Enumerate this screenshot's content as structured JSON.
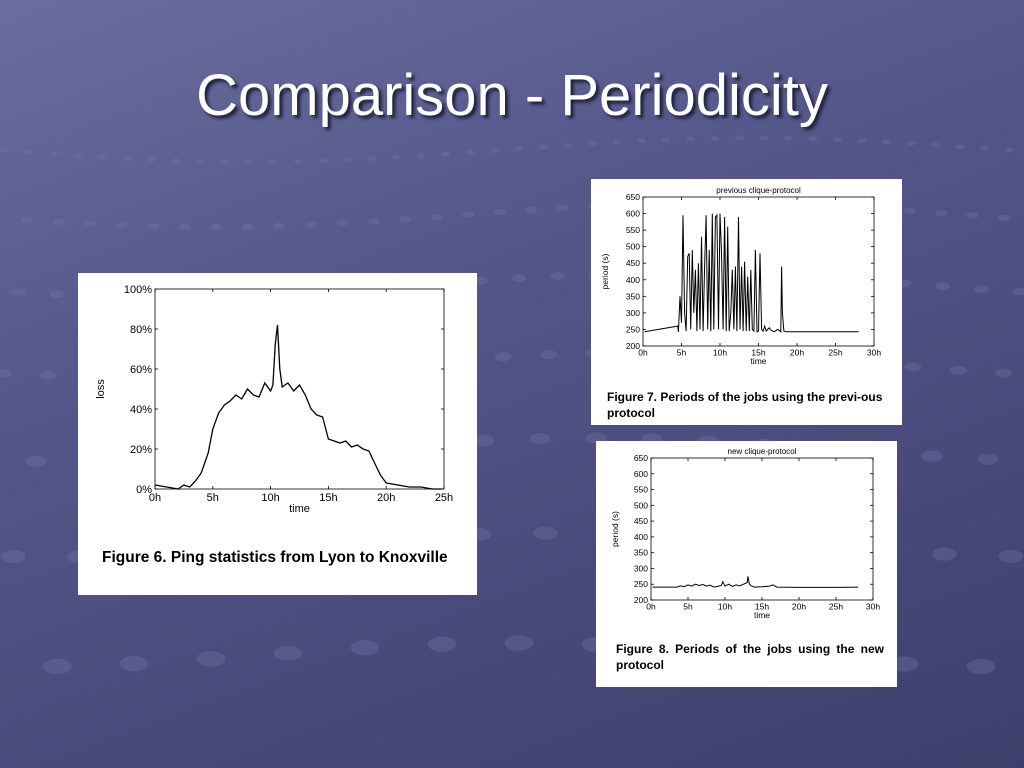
{
  "slide": {
    "title": "Comparison - Periodicity"
  },
  "figures": [
    {
      "caption": "Figure 6. Ping statistics from Lyon to Knoxville"
    },
    {
      "caption": "Figure 7. Periods of the jobs using the previ-ous protocol"
    },
    {
      "caption": "Figure 8. Periods of the jobs using the new protocol"
    }
  ],
  "chart_data": [
    {
      "type": "line",
      "title": "",
      "xlabel": "time",
      "ylabel": "loss",
      "xlim": [
        0,
        25
      ],
      "ylim": [
        0,
        100
      ],
      "x_ticks": [
        "0h",
        "5h",
        "10h",
        "15h",
        "20h",
        "25h"
      ],
      "y_ticks": [
        "0%",
        "20%",
        "40%",
        "60%",
        "80%",
        "100%"
      ],
      "series": [
        {
          "x": [
            0,
            1,
            2,
            2.5,
            3,
            3.5,
            4,
            4.3,
            4.6,
            5,
            5.5,
            6,
            6.5,
            7,
            7.5,
            8,
            8.5,
            9,
            9.5,
            10,
            10.2,
            10.4,
            10.6,
            10.8,
            11,
            11.5,
            12,
            12.5,
            13,
            13.5,
            14,
            14.5,
            15,
            15.5,
            16,
            16.5,
            17,
            17.5,
            18,
            18.5,
            19,
            19.5,
            20,
            21,
            22,
            23,
            24,
            24.8
          ],
          "values": [
            2,
            1,
            0,
            2,
            1,
            4,
            8,
            13,
            18,
            30,
            38,
            42,
            44,
            47,
            45,
            50,
            47,
            46,
            53,
            49,
            52,
            72,
            82,
            60,
            51,
            53,
            49,
            52,
            47,
            40,
            37,
            36,
            25,
            24,
            23,
            24,
            21,
            22,
            20,
            19,
            13,
            7,
            3,
            2,
            1,
            1,
            0,
            0
          ]
        }
      ]
    },
    {
      "type": "line",
      "title": "previous clique-protocol",
      "xlabel": "time",
      "ylabel": "period (s)",
      "xlim": [
        0,
        30
      ],
      "ylim": [
        200,
        650
      ],
      "x_ticks": [
        "0h",
        "5h",
        "10h",
        "15h",
        "20h",
        "25h",
        "30h"
      ],
      "y_ticks": [
        "200",
        "250",
        "300",
        "350",
        "400",
        "450",
        "500",
        "550",
        "600",
        "650"
      ],
      "series": [
        {
          "x": [
            0.2,
            4.5,
            4.6,
            4.8,
            5.0,
            5.2,
            5.4,
            5.6,
            5.8,
            6.0,
            6.2,
            6.4,
            6.6,
            6.8,
            7.0,
            7.2,
            7.4,
            7.6,
            7.8,
            8.0,
            8.2,
            8.4,
            8.6,
            8.8,
            9.0,
            9.2,
            9.4,
            9.6,
            9.8,
            10.0,
            10.2,
            10.4,
            10.6,
            10.8,
            11.0,
            11.2,
            11.4,
            11.6,
            11.8,
            12.0,
            12.2,
            12.4,
            12.6,
            12.8,
            13.0,
            13.2,
            13.4,
            13.6,
            13.8,
            14.0,
            14.2,
            14.4,
            14.6,
            14.8,
            15.0,
            15.2,
            15.4,
            15.6,
            15.8,
            16.0,
            16.2,
            16.4,
            16.6,
            16.8,
            17.0,
            17.5,
            17.9,
            18.0,
            18.1,
            18.3,
            18.6,
            20.0,
            25.0,
            28.0
          ],
          "values": [
            243,
            260,
            243,
            350,
            270,
            595,
            300,
            245,
            470,
            480,
            250,
            490,
            300,
            430,
            245,
            450,
            250,
            530,
            245,
            440,
            595,
            250,
            490,
            245,
            600,
            250,
            590,
            595,
            250,
            600,
            480,
            250,
            590,
            245,
            560,
            245,
            300,
            430,
            250,
            440,
            245,
            590,
            250,
            440,
            245,
            455,
            245,
            410,
            245,
            430,
            250,
            245,
            490,
            243,
            245,
            480,
            250,
            245,
            260,
            245,
            250,
            255,
            248,
            246,
            243,
            250,
            243,
            440,
            300,
            245,
            243,
            243,
            243,
            243
          ]
        }
      ]
    },
    {
      "type": "line",
      "title": "new clique-protocol",
      "xlabel": "time",
      "ylabel": "period (s)",
      "xlim": [
        0,
        30
      ],
      "ylim": [
        200,
        650
      ],
      "x_ticks": [
        "0h",
        "5h",
        "10h",
        "15h",
        "20h",
        "25h",
        "30h"
      ],
      "y_ticks": [
        "200",
        "250",
        "300",
        "350",
        "400",
        "450",
        "500",
        "550",
        "600",
        "650"
      ],
      "series": [
        {
          "x": [
            0.2,
            3.5,
            4.0,
            4.5,
            5.0,
            5.5,
            6.0,
            6.5,
            7.0,
            7.5,
            8.0,
            8.5,
            9.0,
            9.5,
            9.7,
            10.0,
            10.5,
            11.0,
            11.5,
            12.0,
            12.5,
            13.0,
            13.1,
            13.3,
            13.6,
            14.0,
            15.0,
            16.0,
            16.5,
            17.0,
            20.0,
            25.0,
            28.0
          ],
          "values": [
            241,
            241,
            245,
            242,
            248,
            244,
            250,
            246,
            249,
            244,
            247,
            241,
            243,
            246,
            258,
            244,
            250,
            243,
            248,
            245,
            250,
            255,
            275,
            250,
            244,
            241,
            242,
            244,
            248,
            241,
            240,
            240,
            241
          ]
        }
      ]
    }
  ]
}
